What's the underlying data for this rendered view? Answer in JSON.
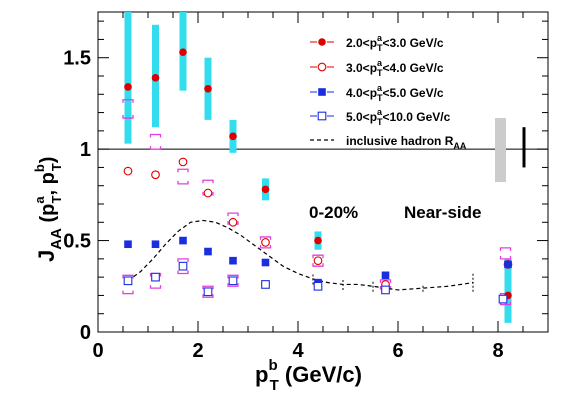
{
  "chart_data": {
    "type": "scatter",
    "xlabel_main": "p",
    "xlabel_sup": "b",
    "xlabel_sub": "T",
    "xlabel_unit": " (GeV/c)",
    "ylabel_main": "J",
    "ylabel_sub": "AA",
    "ylabel_args": [
      "(p",
      "a",
      "T",
      ", p",
      "b",
      "T",
      ")"
    ],
    "xlim": [
      0,
      9
    ],
    "ylim": [
      0,
      1.75
    ],
    "x_ticks": [
      0,
      2,
      4,
      6,
      8
    ],
    "y_ticks": [
      {
        "value": 0,
        "label": "0"
      },
      {
        "value": 0.5,
        "label": "0.5"
      },
      {
        "value": 1,
        "label": "1"
      },
      {
        "value": 1.5,
        "label": "1.5"
      }
    ],
    "reference_line": 1,
    "annotations": {
      "centrality": "0-20%",
      "region": "Near-side"
    },
    "legend_placement": "top-right",
    "series": [
      {
        "name_parts": [
          "2.0<p",
          "a",
          "T",
          "<3.0 GeV/c"
        ],
        "marker": "filled-circle",
        "color": "#dd0000",
        "x": [
          0.6,
          1.15,
          1.7,
          2.2,
          2.7,
          3.35,
          4.4,
          8.2
        ],
        "y": [
          1.34,
          1.39,
          1.53,
          1.33,
          1.07,
          0.78,
          0.5,
          0.2
        ],
        "syst_band": [
          [
            1.03,
            1.75
          ],
          [
            1.12,
            1.68
          ],
          [
            1.32,
            1.75
          ],
          [
            1.16,
            1.5
          ],
          [
            0.98,
            1.16
          ],
          [
            0.72,
            0.84
          ],
          [
            0.45,
            0.55
          ],
          [
            0.05,
            0.4
          ]
        ]
      },
      {
        "name_parts": [
          "3.0<p",
          "a",
          "T",
          "<4.0 GeV/c"
        ],
        "marker": "open-circle",
        "color": "#dd0000",
        "x": [
          0.6,
          1.15,
          1.7,
          2.2,
          2.7,
          3.35,
          4.4,
          5.75,
          8.2
        ],
        "y": [
          0.88,
          0.86,
          0.93,
          0.76,
          0.6,
          0.49,
          0.39,
          0.26,
          0.37
        ]
      },
      {
        "name_parts": [
          "4.0<p",
          "a",
          "T",
          "<5.0 GeV/c"
        ],
        "marker": "filled-square",
        "color": "#1a2ee0",
        "x": [
          0.6,
          1.15,
          1.7,
          2.2,
          2.7,
          3.35,
          4.4,
          5.75,
          8.2
        ],
        "y": [
          0.48,
          0.48,
          0.5,
          0.44,
          0.39,
          0.38,
          0.27,
          0.31,
          0.37
        ]
      },
      {
        "name_parts": [
          "5.0<p",
          "a",
          "T",
          "<10.0 GeV/c"
        ],
        "marker": "open-square",
        "color": "#1a2ee0",
        "x": [
          0.6,
          1.15,
          1.7,
          2.2,
          2.7,
          3.35,
          4.4,
          5.75,
          8.1
        ],
        "y": [
          0.28,
          0.3,
          0.36,
          0.22,
          0.28,
          0.26,
          0.25,
          0.23,
          0.18
        ]
      }
    ],
    "syst_boxes": {
      "color": "#e040e0",
      "x": [
        0.6,
        0.6,
        1.15,
        1.15,
        1.7,
        1.7,
        2.2,
        2.2,
        2.7,
        2.7,
        3.35,
        4.4,
        5.75,
        8.15,
        8.15
      ],
      "y": [
        1.22,
        0.26,
        1.04,
        0.28,
        0.85,
        0.36,
        0.79,
        0.22,
        0.62,
        0.28,
        0.49,
        0.39,
        0.26,
        0.43,
        0.18
      ],
      "h": [
        0.1,
        0.1,
        0.08,
        0.08,
        0.08,
        0.08,
        0.08,
        0.06,
        0.06,
        0.06,
        0.06,
        0.06,
        0.05,
        0.06,
        0.06
      ]
    },
    "reference_curve": {
      "name_parts": [
        "inclusive hadron R",
        "AA"
      ],
      "style": "dashed",
      "color": "#000000",
      "x": [
        0.6,
        0.85,
        1.1,
        1.35,
        1.6,
        1.85,
        2.1,
        2.35,
        2.6,
        2.85,
        3.1,
        3.4,
        3.7,
        4.0,
        4.3,
        4.6,
        4.9,
        5.2,
        5.5,
        5.75,
        6.0,
        6.5,
        7.0,
        7.5
      ],
      "y": [
        0.28,
        0.33,
        0.4,
        0.48,
        0.55,
        0.6,
        0.61,
        0.6,
        0.57,
        0.53,
        0.48,
        0.42,
        0.36,
        0.32,
        0.29,
        0.27,
        0.26,
        0.26,
        0.25,
        0.24,
        0.23,
        0.24,
        0.25,
        0.27
      ],
      "error_x": [
        4.3,
        4.9,
        5.5,
        6.5,
        7.5
      ],
      "error_half": [
        0.03,
        0.03,
        0.03,
        0.02,
        0.05
      ]
    },
    "normalization_boxes": [
      {
        "x": 8.05,
        "y_low": 0.82,
        "y_high": 1.17,
        "color": "#cccccc"
      },
      {
        "x": 8.52,
        "y_low": 0.9,
        "y_high": 1.12,
        "color": "#000000"
      }
    ]
  }
}
